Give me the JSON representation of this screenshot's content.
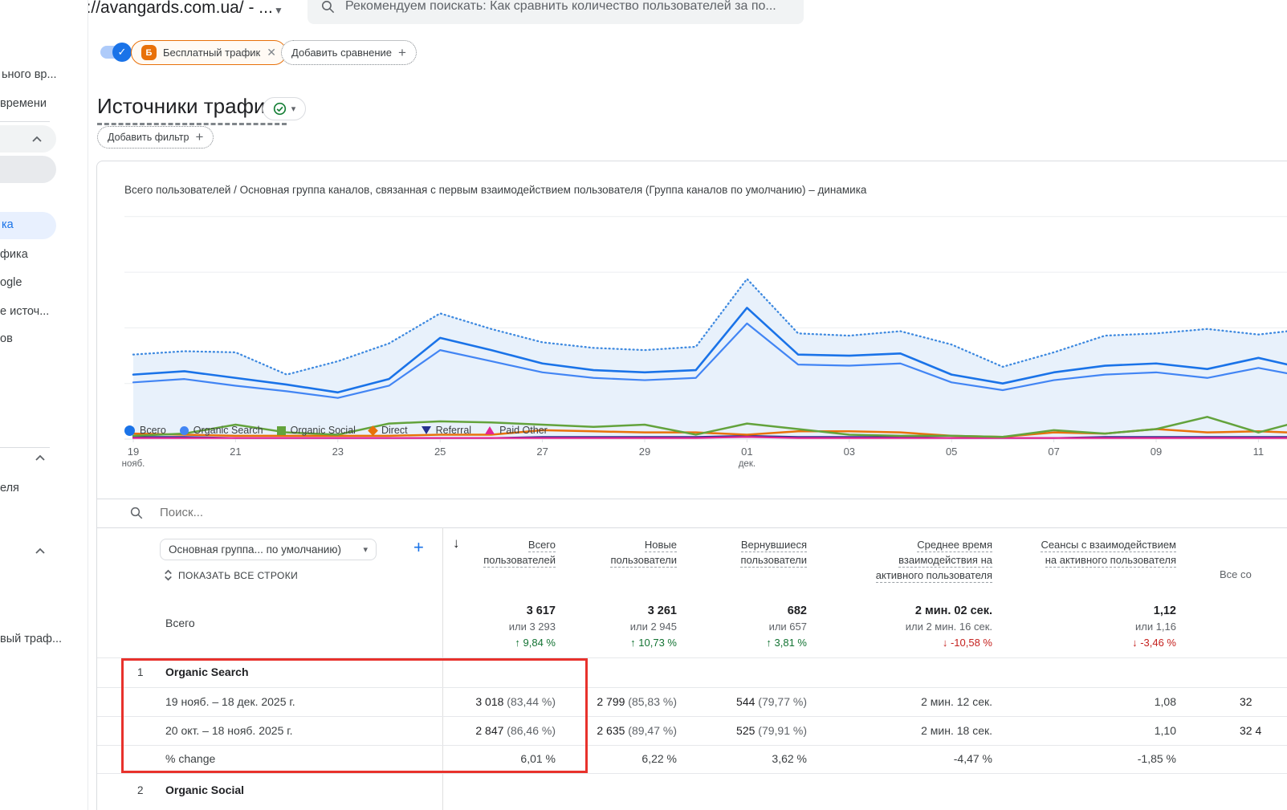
{
  "colors": {
    "accent": "#1a73e8",
    "positive": "#137333",
    "negative": "#c5221f",
    "highlight_box": "#e8322c",
    "chip_border": "#e8710a"
  },
  "browser": {
    "logo_fragment": "ка",
    "property_selector": "https://avangards.com.ua/ - ...",
    "search_hint": "Рекомендуем поискать:  Как сравнить количество пользователей за по..."
  },
  "sidebar": {
    "top_fragments": [
      "ьного вр...",
      "времени"
    ],
    "active_item_fragment": "ка",
    "list_fragments": [
      "фика",
      "ogle",
      "е источ...",
      "ов"
    ],
    "section2_fragment": "еля",
    "section3_fragment": "вый траф..."
  },
  "controls": {
    "toggle_check": "✓",
    "free_traffic_badge": "Б",
    "free_traffic_label": "Бесплатный трафик",
    "close_glyph": "✕",
    "add_comparison_label": "Добавить сравнение",
    "plus_glyph": "+",
    "add_filter_label": "Добавить фильтр"
  },
  "page": {
    "title": "Источники трафика",
    "title_caret": "▾"
  },
  "chart": {
    "title": "Всего пользователей / Основная группа каналов, связанная с первым взаимодействием пользователя (Группа каналов по умолчанию) – динамика"
  },
  "chart_data": {
    "type": "line",
    "title": "Всего пользователей / Основная группа каналов, связанная с первым взаимодействием пользователя (Группа каналов по умолчанию) – динамика",
    "x_unit": "день (19 нояб. – 11+ дек.)",
    "y_axis": {
      "min": 0,
      "max": 210,
      "gridlines": [
        0,
        50,
        100,
        150,
        200
      ],
      "labels_visible": false
    },
    "note": "значения оценены по пикселям, активные пользователи в день",
    "x_ticks": [
      {
        "day": 0,
        "label": "19",
        "sub": "нояб."
      },
      {
        "day": 2,
        "label": "21"
      },
      {
        "day": 4,
        "label": "23"
      },
      {
        "day": 6,
        "label": "25"
      },
      {
        "day": 8,
        "label": "27"
      },
      {
        "day": 10,
        "label": "29"
      },
      {
        "day": 12,
        "label": "01",
        "sub": "дек."
      },
      {
        "day": 14,
        "label": "03"
      },
      {
        "day": 16,
        "label": "05"
      },
      {
        "day": 18,
        "label": "07"
      },
      {
        "day": 20,
        "label": "09"
      },
      {
        "day": 22,
        "label": "11"
      }
    ],
    "draw_order": [
      "referral",
      "paid_other",
      "direct",
      "organic_social",
      "organic_search",
      "total_previous",
      "total_current"
    ],
    "series": [
      {
        "id": "total_current",
        "name": "Всего (текущий период)",
        "color": "#1a73e8",
        "style": "solid",
        "width": 2.6,
        "values": [
          58,
          61,
          55,
          49,
          42,
          54,
          91,
          80,
          68,
          62,
          60,
          62,
          118,
          76,
          75,
          77,
          58,
          50,
          60,
          66,
          68,
          63,
          73,
          67
        ]
      },
      {
        "id": "total_previous",
        "name": "Всего (предыдущий период)",
        "color": "#3f8ae0",
        "style": "dotted",
        "width": 2.3,
        "area": true,
        "area_color": "#e8f1fb",
        "values": [
          76,
          79,
          78,
          58,
          70,
          86,
          113,
          99,
          87,
          82,
          80,
          83,
          144,
          95,
          93,
          97,
          85,
          65,
          78,
          93,
          95,
          99,
          94,
          97
        ]
      },
      {
        "id": "organic_search",
        "name": "Organic Search",
        "color": "#4285f4",
        "style": "solid",
        "width": 2.2,
        "values": [
          51,
          54,
          48,
          43,
          37,
          48,
          80,
          70,
          60,
          55,
          53,
          55,
          104,
          67,
          66,
          68,
          51,
          44,
          53,
          58,
          60,
          55,
          64,
          59
        ]
      },
      {
        "id": "organic_social",
        "name": "Organic Social",
        "color": "#63a33c",
        "style": "solid",
        "width": 2.5,
        "values": [
          3,
          5,
          13,
          6,
          4,
          14,
          16,
          15,
          13,
          11,
          13,
          4,
          14,
          9,
          4,
          3,
          3,
          2,
          8,
          5,
          9,
          20,
          6,
          13
        ]
      },
      {
        "id": "direct",
        "name": "Direct",
        "color": "#e8710a",
        "style": "solid",
        "width": 2.5,
        "values": [
          5,
          4,
          3,
          3,
          3,
          3,
          4,
          4,
          8,
          7,
          6,
          6,
          4,
          7,
          7,
          6,
          3,
          2,
          6,
          5,
          9,
          6,
          7,
          6
        ]
      },
      {
        "id": "referral",
        "name": "Referral",
        "color": "#26328f",
        "style": "solid",
        "width": 2,
        "values": [
          2,
          2,
          1,
          1,
          1,
          1,
          1,
          1,
          2,
          2,
          2,
          2,
          3,
          2,
          2,
          2,
          1,
          1,
          1,
          2,
          2,
          2,
          2,
          2
        ]
      },
      {
        "id": "paid_other",
        "name": "Paid Other",
        "color": "#e52592",
        "style": "solid",
        "width": 2.3,
        "values": [
          1,
          1,
          1,
          1,
          1,
          1,
          1,
          1,
          1,
          1,
          1,
          1,
          2,
          1,
          1,
          1,
          1,
          1,
          1,
          1,
          1,
          1,
          1,
          1
        ]
      }
    ],
    "legend": [
      {
        "label": "Всего",
        "shape": "circle",
        "color": "#1a73e8"
      },
      {
        "label": "Organic Search",
        "shape": "circle",
        "color": "#4285f4"
      },
      {
        "label": "Organic Social",
        "shape": "square",
        "color": "#63a33c"
      },
      {
        "label": "Direct",
        "shape": "diamond",
        "color": "#e8710a"
      },
      {
        "label": "Referral",
        "shape": "triangle-down",
        "color": "#26328f"
      },
      {
        "label": "Paid Other",
        "shape": "triangle-up",
        "color": "#e52592"
      }
    ]
  },
  "table": {
    "search_placeholder": "Поиск...",
    "dimension_selector": "Основная группа... по умолчанию)",
    "selector_caret": "▾",
    "plus": "+",
    "show_all_rows": "ПОКАЗАТЬ ВСЕ СТРОКИ",
    "sort_arrow": "↓",
    "headers": [
      [
        "Всего",
        "пользователей"
      ],
      [
        "Новые",
        "пользователи"
      ],
      [
        "Вернувшиеся",
        "пользователи"
      ],
      [
        "Среднее время",
        "взаимодействия на",
        "активного пользователя"
      ],
      [
        "Сеансы с взаимодействием",
        "на активного пользователя"
      ],
      [
        "Все со"
      ]
    ],
    "totals": {
      "label": "Всего",
      "cells": [
        {
          "value": "3 617",
          "or": "или 3 293",
          "change": "↑ 9,84 %",
          "dir": "up"
        },
        {
          "value": "3 261",
          "or": "или 2 945",
          "change": "↑ 10,73 %",
          "dir": "up"
        },
        {
          "value": "682",
          "or": "или 657",
          "change": "↑ 3,81 %",
          "dir": "up"
        },
        {
          "value": "2 мин. 02 сек.",
          "or": "или 2 мин. 16 сек.",
          "change": "↓ -10,58 %",
          "dir": "down"
        },
        {
          "value": "1,12",
          "or": "или 1,16",
          "change": "↓ -3,46 %",
          "dir": "down"
        }
      ]
    },
    "rows": [
      {
        "index": "1",
        "name": "Organic Search",
        "period1": {
          "label": "19 нояб. – 18 дек. 2025 г.",
          "cells": [
            "3 018 (83,44 %)",
            "2 799 (85,83 %)",
            "544 (79,77 %)",
            "2 мин. 12 сек.",
            "1,08"
          ],
          "last": "32"
        },
        "period2": {
          "label": "20 окт. – 18 нояб. 2025 г.",
          "cells": [
            "2 847 (86,46 %)",
            "2 635 (89,47 %)",
            "525 (79,91 %)",
            "2 мин. 18 сек.",
            "1,10"
          ],
          "last": "32 4"
        },
        "change": {
          "label": "% change",
          "cells": [
            "6,01 %",
            "6,22 %",
            "3,62 %",
            "-4,47 %",
            "-1,85 %"
          ],
          "last": ""
        }
      },
      {
        "index": "2",
        "name": "Organic Social"
      }
    ]
  }
}
